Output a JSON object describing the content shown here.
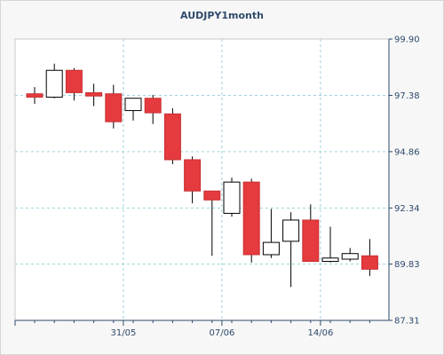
{
  "chart_data": {
    "type": "candlestick",
    "title": "AUDJPY1month",
    "ylim": [
      87.31,
      99.9
    ],
    "y_ticks": [
      "99.90",
      "97.38",
      "94.86",
      "92.34",
      "89.83",
      "87.31"
    ],
    "x_ticks": [
      "31/05",
      "07/06",
      "14/06"
    ],
    "grid": true,
    "colors": {
      "up": "#ffffff",
      "down": "#e53a3e",
      "grid": "#9ed3dc",
      "axis": "#2e4a6b"
    },
    "candles": [
      {
        "index": 0,
        "open": 97.45,
        "high": 97.75,
        "low": 97.0,
        "close": 97.3
      },
      {
        "index": 1,
        "open": 97.3,
        "high": 98.8,
        "low": 97.25,
        "close": 98.5
      },
      {
        "index": 2,
        "open": 98.5,
        "high": 98.6,
        "low": 97.15,
        "close": 97.5
      },
      {
        "index": 3,
        "open": 97.5,
        "high": 97.9,
        "low": 96.9,
        "close": 97.35
      },
      {
        "index": 4,
        "open": 97.45,
        "high": 97.85,
        "low": 95.9,
        "close": 96.2
      },
      {
        "index": 5,
        "open": 96.7,
        "high": 97.2,
        "low": 96.25,
        "close": 97.25
      },
      {
        "index": 6,
        "open": 97.25,
        "high": 97.4,
        "low": 96.1,
        "close": 96.6
      },
      {
        "index": 7,
        "open": 96.55,
        "high": 96.8,
        "low": 94.3,
        "close": 94.5
      },
      {
        "index": 8,
        "open": 94.5,
        "high": 94.65,
        "low": 92.55,
        "close": 93.1
      },
      {
        "index": 9,
        "open": 93.1,
        "high": 93.1,
        "low": 90.2,
        "close": 92.7
      },
      {
        "index": 10,
        "open": 92.1,
        "high": 93.7,
        "low": 91.95,
        "close": 93.5
      },
      {
        "index": 11,
        "open": 93.5,
        "high": 93.65,
        "low": 89.9,
        "close": 90.25
      },
      {
        "index": 12,
        "open": 90.25,
        "high": 92.3,
        "low": 90.1,
        "close": 90.8
      },
      {
        "index": 13,
        "open": 90.85,
        "high": 92.15,
        "low": 88.8,
        "close": 91.8
      },
      {
        "index": 14,
        "open": 91.8,
        "high": 92.5,
        "low": 89.95,
        "close": 89.95
      },
      {
        "index": 15,
        "open": 89.95,
        "high": 91.5,
        "low": 89.9,
        "close": 90.1
      },
      {
        "index": 16,
        "open": 90.05,
        "high": 90.55,
        "low": 89.95,
        "close": 90.3
      },
      {
        "index": 17,
        "open": 90.2,
        "high": 90.95,
        "low": 89.3,
        "close": 89.6
      }
    ]
  }
}
